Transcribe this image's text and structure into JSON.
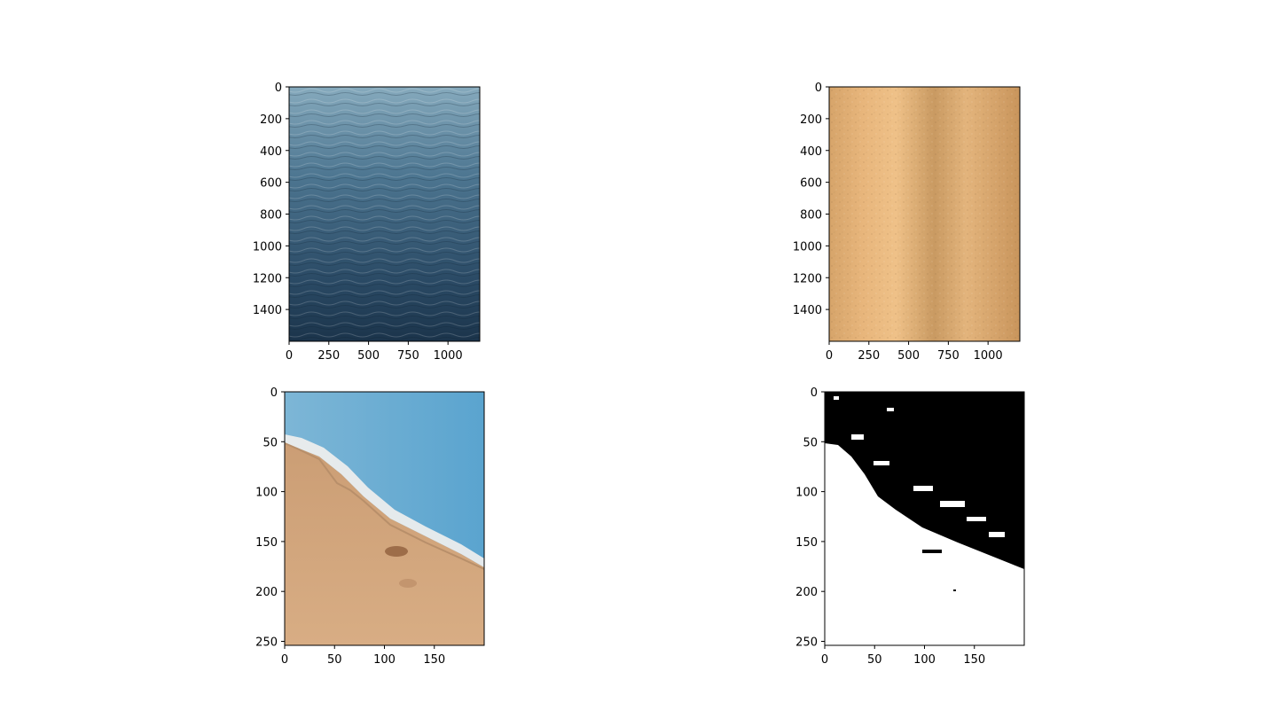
{
  "chart_data": [
    {
      "type": "image",
      "content": "ocean-water-texture",
      "xlim": [
        0,
        1200
      ],
      "ylim": [
        1600,
        0
      ],
      "xticks": [
        0,
        250,
        500,
        750,
        1000
      ],
      "yticks": [
        0,
        200,
        400,
        600,
        800,
        1000,
        1200,
        1400
      ],
      "xtick_labels": [
        "0",
        "250",
        "500",
        "750",
        "1000"
      ],
      "ytick_labels": [
        "0",
        "200",
        "400",
        "600",
        "800",
        "1000",
        "1200",
        "1400"
      ]
    },
    {
      "type": "image",
      "content": "sand-texture",
      "xlim": [
        0,
        1200
      ],
      "ylim": [
        1600,
        0
      ],
      "xticks": [
        0,
        250,
        500,
        750,
        1000
      ],
      "yticks": [
        0,
        200,
        400,
        600,
        800,
        1000,
        1200,
        1400
      ],
      "xtick_labels": [
        "0",
        "250",
        "500",
        "750",
        "1000"
      ],
      "ytick_labels": [
        "0",
        "200",
        "400",
        "600",
        "800",
        "1000",
        "1200",
        "1400"
      ]
    },
    {
      "type": "image",
      "content": "beach-shoreline-with-footprints",
      "xlim": [
        0,
        200
      ],
      "ylim": [
        254,
        0
      ],
      "xticks": [
        0,
        50,
        100,
        150
      ],
      "yticks": [
        0,
        50,
        100,
        150,
        200,
        250
      ],
      "xtick_labels": [
        "0",
        "50",
        "100",
        "150"
      ],
      "ytick_labels": [
        "0",
        "50",
        "100",
        "150",
        "200",
        "250"
      ]
    },
    {
      "type": "image",
      "content": "binary-segmentation-mask",
      "xlim": [
        0,
        200
      ],
      "ylim": [
        254,
        0
      ],
      "xticks": [
        0,
        50,
        100,
        150
      ],
      "yticks": [
        0,
        50,
        100,
        150,
        200,
        250
      ],
      "xtick_labels": [
        "0",
        "50",
        "100",
        "150"
      ],
      "ytick_labels": [
        "0",
        "50",
        "100",
        "150",
        "200",
        "250"
      ]
    }
  ],
  "colors": {
    "ocean_light": "#7fa3b8",
    "ocean_dark": "#1e3a52",
    "sand_light": "#efbd83",
    "sand_dark": "#c49460",
    "shore_water": "#6aa9cf",
    "shore_sand": "#d2a77c",
    "foam": "#f2f0ee",
    "mask_black": "#000000",
    "mask_white": "#ffffff"
  }
}
